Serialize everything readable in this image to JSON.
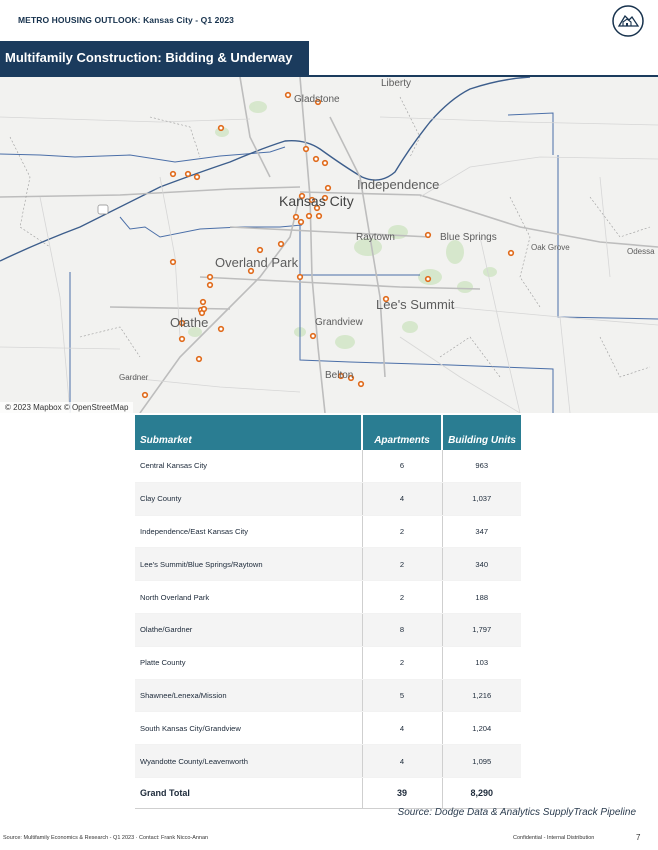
{
  "header": {
    "title": "METRO HOUSING OUTLOOK: Kansas City - Q1 2023",
    "logo_icon": "house-seal-icon"
  },
  "section_title": "Multifamily Construction: Bidding & Underway",
  "map": {
    "credit": "© 2023 Mapbox © OpenStreetMap",
    "place_labels": [
      "Liberty",
      "Gladstone",
      "Independence",
      "Kansas City",
      "Raytown",
      "Blue Springs",
      "Oak Grove",
      "Odessa",
      "Overland Park",
      "Lee's Summit",
      "Olathe",
      "Grandview",
      "Gardner",
      "Belton"
    ],
    "marker_color": "#e06a1b"
  },
  "table": {
    "headers": [
      "Submarket",
      "Apartments",
      "Building Units"
    ],
    "rows": [
      [
        "Central Kansas City",
        "6",
        "963"
      ],
      [
        "Clay County",
        "4",
        "1,037"
      ],
      [
        "Independence/East Kansas City",
        "2",
        "347"
      ],
      [
        "Lee's Summit/Blue Springs/Raytown",
        "2",
        "340"
      ],
      [
        "North Overland Park",
        "2",
        "188"
      ],
      [
        "Olathe/Gardner",
        "8",
        "1,797"
      ],
      [
        "Platte County",
        "2",
        "103"
      ],
      [
        "Shawnee/Lenexa/Mission",
        "5",
        "1,216"
      ],
      [
        "South Kansas City/Grandview",
        "4",
        "1,204"
      ],
      [
        "Wyandotte County/Leavenworth",
        "4",
        "1,095"
      ]
    ],
    "total": [
      "Grand Total",
      "39",
      "8,290"
    ]
  },
  "source": "Source: Dodge Data & Analytics SupplyTrack Pipeline",
  "footer": {
    "left": "Source: Multifamily Economics & Research - Q1 2023   ·   Contact: Frank Nicco-Annan",
    "right": "Confidential - Internal Distribution",
    "page": "7"
  },
  "colors": {
    "header_navy": "#1b3b5d",
    "table_teal": "#2a7d92"
  }
}
